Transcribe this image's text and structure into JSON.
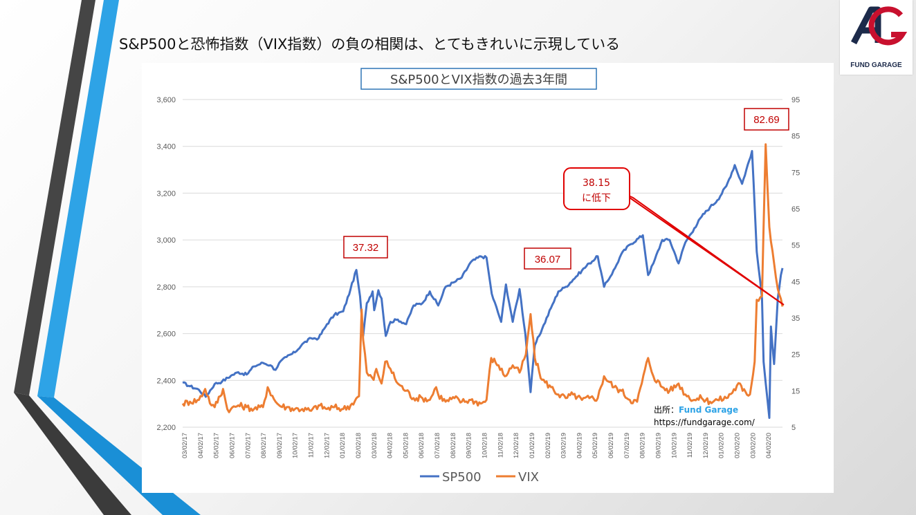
{
  "slide": {
    "title": "S&P500と恐怖指数（VIX指数）の負の相関は、とてもきれいに示現している"
  },
  "logo": {
    "text": "FUND GARAGE",
    "mark": "FG"
  },
  "colors": {
    "sp500": "#4472c4",
    "vix": "#ed7d31",
    "callout_border": "#c00000",
    "callout_text": "#c00000",
    "title_border": "#2e75b6",
    "logo_red": "#c8102e",
    "logo_navy": "#1c2a4a"
  },
  "source": {
    "label": "出所：",
    "name": "Fund Garage",
    "url": "https://fundgarage.com/"
  },
  "callouts": {
    "vix_2018": "37.32",
    "vix_2018_dec": "36.07",
    "vix_2020_peak": "82.69",
    "vix_latest_value": "38.15",
    "vix_latest_note": "に低下"
  },
  "chart_data": {
    "type": "line",
    "title": "S&P500とVIX指数の過去3年間",
    "left_axis": {
      "range": [
        2200,
        3600
      ],
      "ticks": [
        "2,200",
        "2,400",
        "2,600",
        "2,800",
        "3,000",
        "3,200",
        "3,400",
        "3,600"
      ]
    },
    "right_axis": {
      "range": [
        5,
        95
      ],
      "ticks": [
        "5",
        "15",
        "25",
        "35",
        "45",
        "55",
        "65",
        "75",
        "85",
        "95"
      ]
    },
    "x_tick_labels": [
      "03/02/17",
      "04/02/17",
      "05/02/17",
      "06/02/17",
      "07/02/17",
      "08/02/17",
      "09/02/17",
      "10/02/17",
      "11/02/17",
      "12/02/17",
      "01/02/18",
      "02/02/18",
      "03/02/18",
      "04/02/18",
      "05/02/18",
      "06/02/18",
      "07/02/18",
      "08/02/18",
      "09/02/18",
      "10/02/18",
      "11/02/18",
      "12/02/18",
      "01/02/19",
      "02/02/19",
      "03/02/19",
      "04/02/19",
      "05/02/19",
      "06/02/19",
      "07/02/19",
      "08/02/19",
      "09/02/19",
      "10/02/19",
      "11/02/19",
      "12/02/19",
      "01/02/20",
      "02/02/20",
      "03/02/20",
      "04/02/20"
    ],
    "grid": "horizontal",
    "legend_position": "bottom",
    "series": [
      {
        "name": "SP500",
        "axis": "left",
        "x": [
          "2017-03-01",
          "2017-03-15",
          "2017-04-01",
          "2017-04-14",
          "2017-05-01",
          "2017-05-15",
          "2017-06-01",
          "2017-06-15",
          "2017-07-01",
          "2017-07-15",
          "2017-08-01",
          "2017-08-15",
          "2017-08-25",
          "2017-09-01",
          "2017-09-15",
          "2017-10-01",
          "2017-10-15",
          "2017-11-01",
          "2017-11-15",
          "2017-12-01",
          "2017-12-15",
          "2018-01-01",
          "2018-01-15",
          "2018-01-26",
          "2018-02-02",
          "2018-02-08",
          "2018-02-15",
          "2018-02-26",
          "2018-03-01",
          "2018-03-09",
          "2018-03-15",
          "2018-03-23",
          "2018-04-01",
          "2018-04-15",
          "2018-05-01",
          "2018-05-15",
          "2018-06-01",
          "2018-06-15",
          "2018-07-01",
          "2018-07-15",
          "2018-08-01",
          "2018-08-15",
          "2018-09-01",
          "2018-09-20",
          "2018-10-01",
          "2018-10-11",
          "2018-10-29",
          "2018-11-07",
          "2018-11-20",
          "2018-12-03",
          "2018-12-14",
          "2018-12-24",
          "2019-01-01",
          "2019-01-15",
          "2019-02-01",
          "2019-02-15",
          "2019-03-01",
          "2019-03-15",
          "2019-04-01",
          "2019-04-15",
          "2019-05-01",
          "2019-05-13",
          "2019-06-03",
          "2019-06-15",
          "2019-07-01",
          "2019-07-26",
          "2019-08-05",
          "2019-08-15",
          "2019-09-01",
          "2019-09-15",
          "2019-10-02",
          "2019-10-15",
          "2019-11-01",
          "2019-11-15",
          "2019-12-01",
          "2019-12-15",
          "2020-01-01",
          "2020-01-17",
          "2020-01-31",
          "2020-02-19",
          "2020-02-28",
          "2020-03-09",
          "2020-03-12",
          "2020-03-16",
          "2020-03-23",
          "2020-03-26",
          "2020-04-01",
          "2020-04-08",
          "2020-04-14",
          "2020-04-17"
        ],
        "values": [
          2390,
          2375,
          2360,
          2330,
          2385,
          2395,
          2420,
          2435,
          2425,
          2460,
          2475,
          2465,
          2445,
          2475,
          2500,
          2520,
          2555,
          2580,
          2580,
          2640,
          2680,
          2695,
          2790,
          2872,
          2760,
          2590,
          2730,
          2780,
          2700,
          2785,
          2750,
          2590,
          2650,
          2660,
          2640,
          2720,
          2730,
          2780,
          2720,
          2800,
          2820,
          2840,
          2905,
          2930,
          2925,
          2770,
          2650,
          2810,
          2650,
          2790,
          2600,
          2350,
          2550,
          2620,
          2710,
          2780,
          2800,
          2830,
          2870,
          2900,
          2930,
          2800,
          2880,
          2940,
          2980,
          3020,
          2850,
          2900,
          3000,
          3000,
          2900,
          2990,
          3050,
          3100,
          3140,
          3170,
          3230,
          3320,
          3240,
          3380,
          2950,
          2750,
          2480,
          2390,
          2240,
          2630,
          2470,
          2750,
          2850,
          2880
        ]
      },
      {
        "name": "VIX",
        "axis": "right",
        "x": [
          "2017-03-01",
          "2017-03-15",
          "2017-04-01",
          "2017-04-13",
          "2017-04-25",
          "2017-05-01",
          "2017-05-17",
          "2017-05-25",
          "2017-06-01",
          "2017-06-15",
          "2017-07-01",
          "2017-07-15",
          "2017-08-01",
          "2017-08-10",
          "2017-08-25",
          "2017-09-01",
          "2017-09-15",
          "2017-10-01",
          "2017-10-15",
          "2017-11-01",
          "2017-11-15",
          "2017-12-01",
          "2017-12-15",
          "2018-01-01",
          "2018-01-15",
          "2018-01-31",
          "2018-02-05",
          "2018-02-08",
          "2018-02-15",
          "2018-02-28",
          "2018-03-05",
          "2018-03-15",
          "2018-03-22",
          "2018-04-01",
          "2018-04-15",
          "2018-05-01",
          "2018-05-15",
          "2018-06-01",
          "2018-06-15",
          "2018-06-27",
          "2018-07-01",
          "2018-07-15",
          "2018-08-01",
          "2018-08-15",
          "2018-09-01",
          "2018-09-20",
          "2018-10-01",
          "2018-10-10",
          "2018-10-24",
          "2018-11-05",
          "2018-11-20",
          "2018-12-03",
          "2018-12-15",
          "2018-12-24",
          "2019-01-01",
          "2019-01-15",
          "2019-02-01",
          "2019-02-15",
          "2019-03-01",
          "2019-03-15",
          "2019-04-01",
          "2019-04-15",
          "2019-05-01",
          "2019-05-13",
          "2019-06-01",
          "2019-06-15",
          "2019-07-01",
          "2019-07-15",
          "2019-08-05",
          "2019-08-15",
          "2019-09-01",
          "2019-09-15",
          "2019-10-02",
          "2019-10-15",
          "2019-11-01",
          "2019-11-15",
          "2019-12-01",
          "2019-12-15",
          "2020-01-01",
          "2020-01-27",
          "2020-02-01",
          "2020-02-15",
          "2020-02-24",
          "2020-02-28",
          "2020-03-09",
          "2020-03-12",
          "2020-03-16",
          "2020-03-23",
          "2020-04-01",
          "2020-04-08",
          "2020-04-17"
        ],
        "values": [
          11.5,
          12,
          12.5,
          15.5,
          11,
          10.5,
          15.5,
          10,
          10,
          11,
          10.5,
          10,
          10.5,
          16,
          12,
          11,
          10.5,
          10,
          10,
          9.5,
          11,
          10,
          10.5,
          10,
          11,
          13.5,
          37.32,
          29,
          20,
          18,
          21,
          17,
          23,
          21,
          17,
          15,
          13,
          13,
          12.5,
          16,
          14,
          12,
          13,
          12,
          12.5,
          11.5,
          12.5,
          24,
          22,
          19,
          22,
          20,
          25,
          36.07,
          24,
          18,
          16,
          14,
          13,
          14,
          12.5,
          13,
          13,
          19,
          16,
          15,
          12.5,
          12,
          24,
          19,
          16,
          15,
          17,
          14,
          12.5,
          13,
          12,
          12.5,
          13,
          17,
          15,
          14,
          23,
          40,
          41,
          60,
          82.69,
          60,
          50,
          43,
          38.15
        ]
      }
    ]
  }
}
